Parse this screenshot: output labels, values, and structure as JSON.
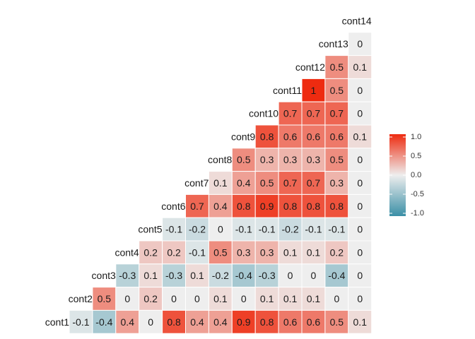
{
  "chart_data": {
    "type": "heatmap",
    "layout": "lower-triangle-correlation",
    "variables": [
      "cont1",
      "cont2",
      "cont3",
      "cont4",
      "cont5",
      "cont6",
      "cont7",
      "cont8",
      "cont9",
      "cont10",
      "cont11",
      "cont12",
      "cont13",
      "cont14"
    ],
    "rows": [
      {
        "name": "cont14",
        "values": []
      },
      {
        "name": "cont13",
        "values": [
          0
        ]
      },
      {
        "name": "cont12",
        "values": [
          0.5,
          0.1
        ]
      },
      {
        "name": "cont11",
        "values": [
          1,
          0.5,
          0
        ]
      },
      {
        "name": "cont10",
        "values": [
          0.7,
          0.7,
          0.7,
          0
        ]
      },
      {
        "name": "cont9",
        "values": [
          0.8,
          0.6,
          0.6,
          0.6,
          0.1
        ]
      },
      {
        "name": "cont8",
        "values": [
          0.5,
          0.3,
          0.3,
          0.3,
          0.5,
          0
        ]
      },
      {
        "name": "cont7",
        "values": [
          0.1,
          0.4,
          0.5,
          0.7,
          0.7,
          0.3,
          0
        ]
      },
      {
        "name": "cont6",
        "values": [
          0.7,
          0.4,
          0.8,
          0.9,
          0.8,
          0.8,
          0.8,
          0
        ]
      },
      {
        "name": "cont5",
        "values": [
          -0.1,
          -0.2,
          0,
          -0.1,
          -0.1,
          -0.2,
          -0.1,
          -0.1,
          0
        ]
      },
      {
        "name": "cont4",
        "values": [
          0.2,
          0.2,
          -0.1,
          0.5,
          0.3,
          0.3,
          0.1,
          0.1,
          0.2,
          0
        ]
      },
      {
        "name": "cont3",
        "values": [
          -0.3,
          0.1,
          -0.3,
          0.1,
          -0.2,
          -0.4,
          -0.3,
          0,
          0,
          -0.4,
          0
        ]
      },
      {
        "name": "cont2",
        "values": [
          0.5,
          0,
          0.2,
          0,
          0,
          0.1,
          0,
          0.1,
          0.1,
          0.1,
          0,
          0
        ]
      },
      {
        "name": "cont1",
        "values": [
          -0.1,
          -0.4,
          0.4,
          0,
          0.8,
          0.4,
          0.4,
          0.9,
          0.8,
          0.6,
          0.6,
          0.5,
          0.1
        ]
      }
    ],
    "color_scale": {
      "low": "#3a8fa6",
      "mid": "#eeeeee",
      "high": "#ee2b10",
      "domain": [
        -1,
        1
      ]
    },
    "legend": {
      "position": "right",
      "ticks": [
        "1.0",
        "0.5",
        "0.0",
        "-0.5",
        "-1.0"
      ],
      "tick_values": [
        1,
        0.5,
        0,
        -0.5,
        -1
      ]
    }
  }
}
